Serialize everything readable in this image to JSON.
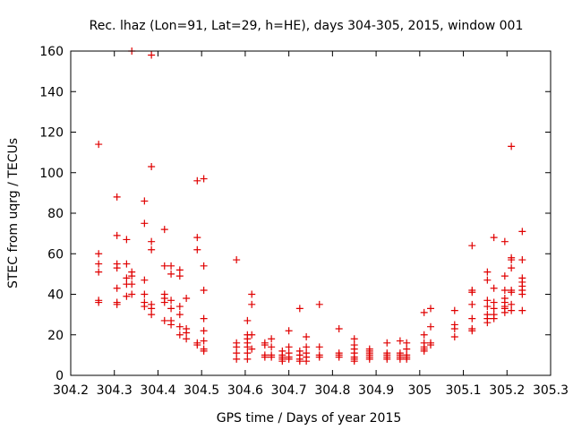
{
  "chart_data": {
    "type": "scatter",
    "title": "Rec. lhaz (Lon=91, Lat=29, h=HE), days 304-305, 2015, window 001",
    "xlabel": "GPS time / Days of year 2015",
    "ylabel": "STEC from uqrg / TECUs",
    "xlim": [
      304.2,
      305.3
    ],
    "ylim": [
      0,
      160
    ],
    "xticks": [
      "304.2",
      "304.3",
      "304.4",
      "304.5",
      "304.6",
      "304.7",
      "304.8",
      "304.9",
      "305",
      "305.1",
      "305.2",
      "305.3"
    ],
    "yticks": [
      "0",
      "20",
      "40",
      "60",
      "80",
      "100",
      "120",
      "140",
      "160"
    ],
    "grid": false,
    "legend": "none",
    "marker": "+",
    "color": "#e00000",
    "series": [
      {
        "points": [
          [
            304.264,
            114
          ],
          [
            304.264,
            60
          ],
          [
            304.264,
            55
          ],
          [
            304.264,
            51
          ],
          [
            304.264,
            37
          ],
          [
            304.264,
            36
          ],
          [
            304.306,
            88
          ],
          [
            304.306,
            69
          ],
          [
            304.306,
            55
          ],
          [
            304.306,
            53
          ],
          [
            304.306,
            43
          ],
          [
            304.306,
            36
          ],
          [
            304.306,
            35
          ],
          [
            304.328,
            67
          ],
          [
            304.328,
            55
          ],
          [
            304.328,
            48
          ],
          [
            304.328,
            45
          ],
          [
            304.328,
            39
          ],
          [
            304.34,
            160
          ],
          [
            304.34,
            51
          ],
          [
            304.34,
            49
          ],
          [
            304.34,
            45
          ],
          [
            304.34,
            40
          ],
          [
            304.369,
            86
          ],
          [
            304.369,
            75
          ],
          [
            304.369,
            47
          ],
          [
            304.369,
            40
          ],
          [
            304.369,
            36
          ],
          [
            304.369,
            34
          ],
          [
            304.385,
            158
          ],
          [
            304.385,
            103
          ],
          [
            304.385,
            66
          ],
          [
            304.385,
            62
          ],
          [
            304.385,
            35
          ],
          [
            304.385,
            33
          ],
          [
            304.385,
            30
          ],
          [
            304.415,
            72
          ],
          [
            304.415,
            54
          ],
          [
            304.415,
            40
          ],
          [
            304.415,
            38
          ],
          [
            304.415,
            36
          ],
          [
            304.415,
            27
          ],
          [
            304.43,
            54
          ],
          [
            304.43,
            50
          ],
          [
            304.43,
            37
          ],
          [
            304.43,
            33
          ],
          [
            304.43,
            27
          ],
          [
            304.43,
            25
          ],
          [
            304.45,
            52
          ],
          [
            304.45,
            49
          ],
          [
            304.45,
            34
          ],
          [
            304.45,
            30
          ],
          [
            304.45,
            24
          ],
          [
            304.45,
            20
          ],
          [
            304.465,
            38
          ],
          [
            304.465,
            23
          ],
          [
            304.465,
            21
          ],
          [
            304.465,
            18
          ],
          [
            304.49,
            96
          ],
          [
            304.49,
            68
          ],
          [
            304.49,
            62
          ],
          [
            304.49,
            16
          ],
          [
            304.49,
            15
          ],
          [
            304.505,
            97
          ],
          [
            304.505,
            54
          ],
          [
            304.505,
            42
          ],
          [
            304.505,
            28
          ],
          [
            304.505,
            22
          ],
          [
            304.505,
            17
          ],
          [
            304.505,
            13
          ],
          [
            304.505,
            12
          ],
          [
            304.58,
            57
          ],
          [
            304.58,
            16
          ],
          [
            304.58,
            14
          ],
          [
            304.58,
            11
          ],
          [
            304.58,
            8
          ],
          [
            304.605,
            27
          ],
          [
            304.605,
            20
          ],
          [
            304.605,
            18
          ],
          [
            304.605,
            16
          ],
          [
            304.605,
            14
          ],
          [
            304.605,
            11
          ],
          [
            304.605,
            8
          ],
          [
            304.615,
            40
          ],
          [
            304.615,
            35
          ],
          [
            304.615,
            20
          ],
          [
            304.615,
            13
          ],
          [
            304.645,
            16
          ],
          [
            304.645,
            15
          ],
          [
            304.645,
            10
          ],
          [
            304.645,
            9
          ],
          [
            304.66,
            18
          ],
          [
            304.66,
            14
          ],
          [
            304.66,
            10
          ],
          [
            304.66,
            9
          ],
          [
            304.685,
            12
          ],
          [
            304.685,
            10
          ],
          [
            304.685,
            9
          ],
          [
            304.685,
            8
          ],
          [
            304.685,
            7
          ],
          [
            304.7,
            22
          ],
          [
            304.7,
            14
          ],
          [
            304.7,
            11
          ],
          [
            304.7,
            9
          ],
          [
            304.7,
            8
          ],
          [
            304.725,
            33
          ],
          [
            304.725,
            12
          ],
          [
            304.725,
            10
          ],
          [
            304.725,
            8
          ],
          [
            304.725,
            7
          ],
          [
            304.74,
            19
          ],
          [
            304.74,
            14
          ],
          [
            304.74,
            11
          ],
          [
            304.74,
            9
          ],
          [
            304.74,
            7
          ],
          [
            304.77,
            35
          ],
          [
            304.77,
            14
          ],
          [
            304.77,
            10
          ],
          [
            304.77,
            9
          ],
          [
            304.815,
            23
          ],
          [
            304.815,
            11
          ],
          [
            304.815,
            10
          ],
          [
            304.815,
            9
          ],
          [
            304.85,
            18
          ],
          [
            304.85,
            15
          ],
          [
            304.85,
            13
          ],
          [
            304.85,
            11
          ],
          [
            304.85,
            9
          ],
          [
            304.85,
            8
          ],
          [
            304.85,
            7
          ],
          [
            304.885,
            13
          ],
          [
            304.885,
            12
          ],
          [
            304.885,
            11
          ],
          [
            304.885,
            10
          ],
          [
            304.885,
            9
          ],
          [
            304.885,
            8
          ],
          [
            304.925,
            16
          ],
          [
            304.925,
            11
          ],
          [
            304.925,
            10
          ],
          [
            304.925,
            9
          ],
          [
            304.925,
            8
          ],
          [
            304.955,
            17
          ],
          [
            304.955,
            11
          ],
          [
            304.955,
            10
          ],
          [
            304.955,
            9
          ],
          [
            304.955,
            8
          ],
          [
            304.97,
            16
          ],
          [
            304.97,
            13
          ],
          [
            304.97,
            10
          ],
          [
            304.97,
            9
          ],
          [
            304.97,
            8
          ],
          [
            305.01,
            31
          ],
          [
            305.01,
            20
          ],
          [
            305.01,
            16
          ],
          [
            305.01,
            14
          ],
          [
            305.01,
            13
          ],
          [
            305.01,
            12
          ],
          [
            305.025,
            33
          ],
          [
            305.025,
            24
          ],
          [
            305.025,
            16
          ],
          [
            305.025,
            15
          ],
          [
            305.08,
            32
          ],
          [
            305.08,
            25
          ],
          [
            305.08,
            23
          ],
          [
            305.08,
            19
          ],
          [
            305.12,
            64
          ],
          [
            305.12,
            42
          ],
          [
            305.12,
            41
          ],
          [
            305.12,
            35
          ],
          [
            305.12,
            28
          ],
          [
            305.12,
            23
          ],
          [
            305.12,
            22
          ],
          [
            305.155,
            51
          ],
          [
            305.155,
            47
          ],
          [
            305.155,
            37
          ],
          [
            305.155,
            34
          ],
          [
            305.155,
            30
          ],
          [
            305.155,
            28
          ],
          [
            305.155,
            26
          ],
          [
            305.17,
            68
          ],
          [
            305.17,
            43
          ],
          [
            305.17,
            36
          ],
          [
            305.17,
            33
          ],
          [
            305.17,
            30
          ],
          [
            305.17,
            28
          ],
          [
            305.195,
            66
          ],
          [
            305.195,
            49
          ],
          [
            305.195,
            42
          ],
          [
            305.195,
            38
          ],
          [
            305.195,
            36
          ],
          [
            305.195,
            34
          ],
          [
            305.195,
            33
          ],
          [
            305.195,
            31
          ],
          [
            305.21,
            113
          ],
          [
            305.21,
            58
          ],
          [
            305.21,
            57
          ],
          [
            305.21,
            53
          ],
          [
            305.21,
            42
          ],
          [
            305.21,
            41
          ],
          [
            305.21,
            35
          ],
          [
            305.21,
            32
          ],
          [
            305.235,
            71
          ],
          [
            305.235,
            57
          ],
          [
            305.235,
            48
          ],
          [
            305.235,
            46
          ],
          [
            305.235,
            44
          ],
          [
            305.235,
            42
          ],
          [
            305.235,
            40
          ],
          [
            305.235,
            32
          ]
        ]
      }
    ]
  }
}
